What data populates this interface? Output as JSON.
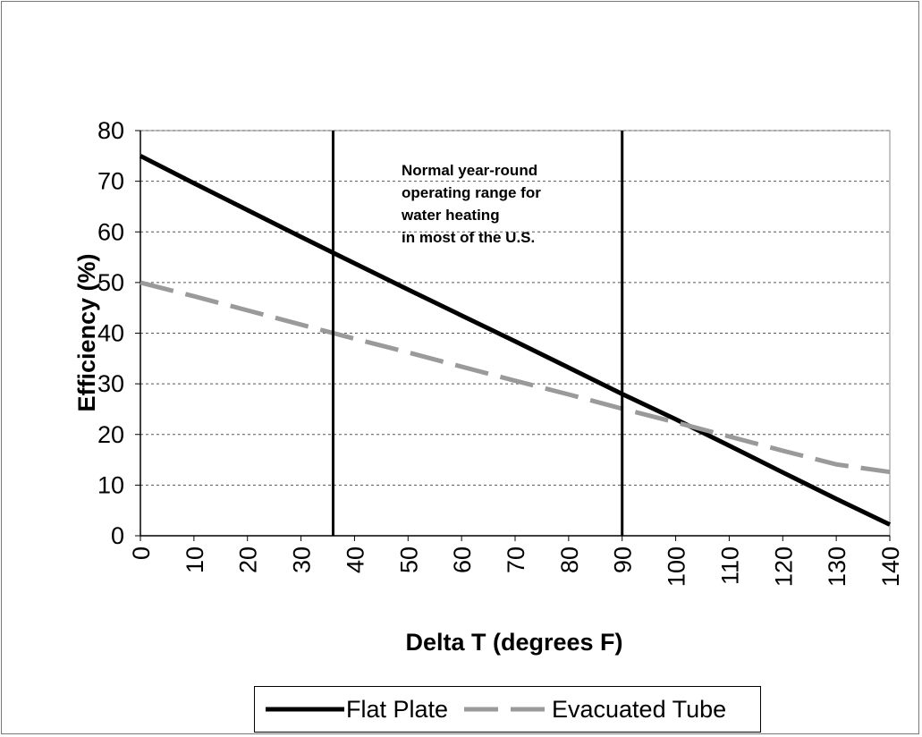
{
  "chart_data": {
    "type": "line",
    "title": "",
    "xlabel": "Delta T (degrees F)",
    "ylabel": "Efficiency (%)",
    "xlim": [
      0,
      140
    ],
    "ylim": [
      0,
      80
    ],
    "x_ticks": [
      "0",
      "10",
      "20",
      "30",
      "40",
      "50",
      "60",
      "70",
      "80",
      "90",
      "100",
      "110",
      "120",
      "130",
      "140"
    ],
    "y_ticks": [
      "0",
      "10",
      "20",
      "30",
      "40",
      "50",
      "60",
      "70",
      "80"
    ],
    "grid": "horizontal dashed",
    "legend_position": "bottom",
    "series": [
      {
        "name": "Flat Plate",
        "style": "solid",
        "color": "#000000",
        "x": [
          0,
          10,
          20,
          30,
          40,
          50,
          60,
          70,
          80,
          90,
          100,
          110,
          120,
          130,
          140
        ],
        "y": [
          75,
          69.6,
          64.3,
          59,
          53.8,
          48.6,
          43.5,
          38.4,
          33.2,
          28,
          23,
          17.8,
          12.5,
          7.3,
          2.2
        ]
      },
      {
        "name": "Evacuated Tube",
        "style": "dashed",
        "color": "#9a9a9a",
        "x": [
          0,
          10,
          20,
          30,
          40,
          50,
          60,
          70,
          80,
          90,
          100,
          110,
          120,
          130,
          140
        ],
        "y": [
          50,
          47.3,
          44.5,
          41.7,
          38.9,
          36.2,
          33.4,
          30.6,
          27.9,
          25.1,
          22.4,
          19.6,
          16.8,
          14.1,
          12.6
        ]
      }
    ],
    "vertical_markers": [
      36,
      90
    ],
    "annotation": {
      "lines": [
        "Normal year-round",
        "operating range for",
        " water heating",
        "in most of the U.S."
      ]
    }
  }
}
